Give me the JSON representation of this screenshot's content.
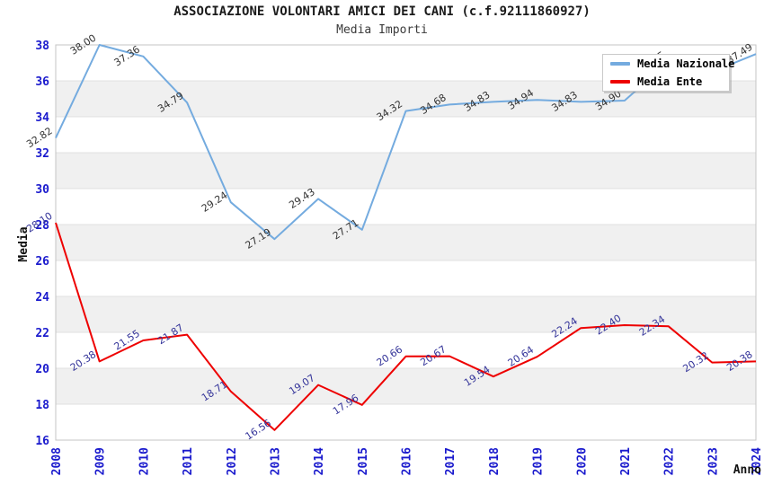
{
  "chart_data": {
    "type": "line",
    "title": "ASSOCIAZIONE VOLONTARI AMICI DEI CANI (c.f.92111860927)",
    "subtitle": "Media Importi",
    "xlabel": "Anno",
    "ylabel": "Media",
    "x": [
      2008,
      2009,
      2010,
      2011,
      2012,
      2013,
      2014,
      2015,
      2016,
      2017,
      2018,
      2019,
      2020,
      2021,
      2022,
      2023,
      2024
    ],
    "series": [
      {
        "name": "Media Nazionale",
        "color": "#74abdf",
        "label_color": "#333333",
        "values": [
          32.82,
          38.0,
          37.36,
          34.79,
          29.24,
          27.19,
          29.43,
          27.71,
          34.32,
          34.68,
          34.83,
          34.94,
          34.83,
          34.9,
          37.05,
          36.5,
          37.49
        ],
        "labels_hidden_by_legend": [
          "2021",
          "2023"
        ]
      },
      {
        "name": "Media Ente",
        "color": "#ee0000",
        "label_color": "#333399",
        "values": [
          28.1,
          20.38,
          21.55,
          21.87,
          18.71,
          16.56,
          19.07,
          17.96,
          20.66,
          20.67,
          19.54,
          20.64,
          22.24,
          22.4,
          22.34,
          20.32,
          20.38
        ]
      }
    ],
    "ylim": [
      16,
      38
    ],
    "y_ticks": [
      16,
      18,
      20,
      22,
      24,
      26,
      28,
      30,
      32,
      34,
      36,
      38
    ],
    "grid": true,
    "legend_position": "top-right",
    "style": {
      "band_color": "#f0f0f0",
      "grid_color": "#e0e0e0",
      "border_color": "#c4c4c4",
      "tick_color": "#1a1acd",
      "axis_title_color": "#111111",
      "point_label_decimals": "2"
    }
  }
}
